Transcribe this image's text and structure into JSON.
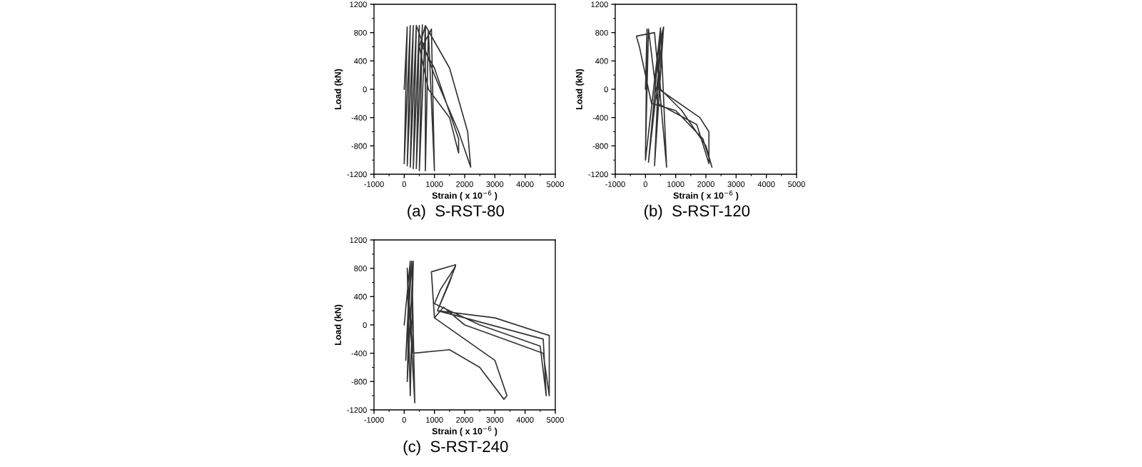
{
  "chart_data": [
    {
      "type": "line",
      "title": "(a)  S-RST-80",
      "xlabel": "Strain ( x 10$^{−6}$ )",
      "ylabel": "Load (kN)",
      "color": "#333333",
      "xlim": [
        -1000,
        5000
      ],
      "ylim": [
        -1200,
        1200
      ],
      "xticks": [
        -1000,
        0,
        1000,
        2000,
        3000,
        4000,
        5000
      ],
      "yticks": [
        -1200,
        -800,
        -400,
        0,
        400,
        800,
        1200
      ],
      "x": [
        0,
        100,
        0,
        200,
        100,
        300,
        200,
        400,
        300,
        500,
        400,
        600,
        500,
        700,
        700,
        800,
        1000,
        900,
        600,
        1000,
        1800,
        1800,
        1500,
        800,
        500,
        700,
        1500,
        2100,
        2200,
        1800,
        1000,
        400
      ],
      "values": [
        0,
        880,
        -1050,
        900,
        -1080,
        900,
        -1100,
        900,
        -1120,
        900,
        -1120,
        910,
        -1150,
        900,
        -1150,
        820,
        -1150,
        850,
        600,
        300,
        -700,
        -900,
        -400,
        0,
        600,
        900,
        300,
        -600,
        -1100,
        -600,
        200,
        900
      ]
    },
    {
      "type": "line",
      "title": "(b)  S-RST-120",
      "xlabel": "Strain ( x 10$^{−6}$ )",
      "ylabel": "Load (kN)",
      "color": "#333333",
      "xlim": [
        -1000,
        5000
      ],
      "ylim": [
        -1200,
        1200
      ],
      "xticks": [
        -1000,
        0,
        1000,
        2000,
        3000,
        4000,
        5000
      ],
      "yticks": [
        -1200,
        -800,
        -400,
        0,
        400,
        800,
        1200
      ],
      "x": [
        0,
        50,
        0,
        500,
        100,
        600,
        300,
        500,
        700,
        300,
        -300,
        -200,
        0,
        200,
        1000,
        1900,
        2200,
        2000,
        1200,
        500,
        400,
        600,
        450,
        1800,
        2100,
        2100,
        1700,
        400,
        100,
        0
      ],
      "values": [
        0,
        850,
        -1000,
        870,
        -1030,
        880,
        -1080,
        850,
        -1100,
        800,
        750,
        600,
        200,
        -200,
        -300,
        -700,
        -1100,
        -800,
        -300,
        0,
        500,
        880,
        0,
        -400,
        -600,
        -1050,
        -500,
        -200,
        850,
        -900
      ]
    },
    {
      "type": "line",
      "title": "(c)  S-RST-240",
      "xlabel": "Strain ( x 10$^{−6}$ )",
      "ylabel": "Load (kN)",
      "color": "#333333",
      "xlim": [
        -1000,
        5000
      ],
      "ylim": [
        -1200,
        1200
      ],
      "xticks": [
        -1000,
        0,
        1000,
        2000,
        3000,
        4000,
        5000
      ],
      "yticks": [
        -1200,
        -800,
        -400,
        0,
        400,
        800,
        1200
      ],
      "x": [
        0,
        200,
        100,
        300,
        200,
        100,
        350,
        250,
        50,
        150,
        300,
        1500,
        2500,
        3300,
        3400,
        3000,
        1000,
        900,
        1700,
        1500,
        1100,
        2000,
        4600,
        4700,
        4500,
        2500,
        1000,
        1200,
        1700,
        1100,
        3000,
        4800,
        4800,
        4600,
        2000,
        1300,
        1000
      ],
      "values": [
        0,
        900,
        -800,
        900,
        -1000,
        800,
        -1100,
        900,
        -500,
        400,
        -400,
        -350,
        -600,
        -1050,
        -1000,
        -500,
        100,
        750,
        850,
        600,
        200,
        100,
        -200,
        -1000,
        -300,
        0,
        300,
        500,
        830,
        200,
        100,
        -150,
        -1000,
        -400,
        0,
        250,
        100
      ]
    }
  ]
}
